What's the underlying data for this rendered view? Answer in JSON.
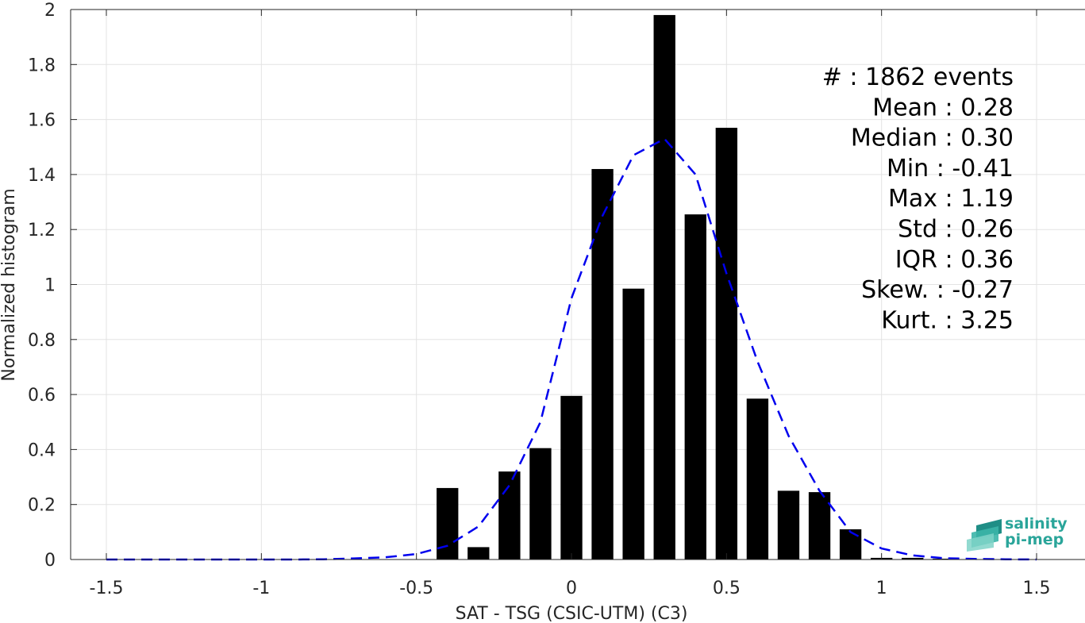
{
  "chart_data": {
    "type": "bar",
    "title": "",
    "xlabel": "SAT - TSG (CSIC-UTM) (C3)",
    "ylabel": "Normalized histogram",
    "xlim": [
      -1.5,
      1.5
    ],
    "ylim": [
      0,
      2
    ],
    "grid": true,
    "xticks": [
      -1.5,
      -1,
      -0.5,
      0,
      0.5,
      1,
      1.5
    ],
    "xtick_labels": [
      "-1.5",
      "-1",
      "-0.5",
      "0",
      "0.5",
      "1",
      "1.5"
    ],
    "yticks": [
      0,
      0.2,
      0.4,
      0.6,
      0.8,
      1,
      1.2,
      1.4,
      1.6,
      1.8,
      2
    ],
    "ytick_labels": [
      "0",
      "0.2",
      "0.4",
      "0.6",
      "0.8",
      "1",
      "1.2",
      "1.4",
      "1.6",
      "1.8",
      "2"
    ],
    "bar_width": 0.07,
    "bar_color": "#000000",
    "bars": {
      "x": [
        -0.4,
        -0.3,
        -0.2,
        -0.1,
        0.0,
        0.1,
        0.2,
        0.3,
        0.4,
        0.5,
        0.6,
        0.7,
        0.8,
        0.9,
        1.0,
        1.1,
        1.2
      ],
      "values": [
        0.26,
        0.045,
        0.32,
        0.405,
        0.595,
        1.42,
        0.985,
        1.98,
        1.255,
        1.57,
        0.585,
        0.25,
        0.245,
        0.11,
        0.006,
        0.006,
        0.003
      ]
    },
    "fit_curve": {
      "style": "dashed",
      "color": "#0000ee",
      "x": [
        -1.5,
        -1.4,
        -1.3,
        -1.2,
        -1.1,
        -1.0,
        -0.9,
        -0.8,
        -0.7,
        -0.6,
        -0.5,
        -0.4,
        -0.3,
        -0.2,
        -0.1,
        0.0,
        0.1,
        0.2,
        0.3,
        0.4,
        0.5,
        0.6,
        0.7,
        0.8,
        0.9,
        1.0,
        1.1,
        1.2,
        1.3,
        1.4,
        1.5
      ],
      "y": [
        0,
        0,
        0,
        0,
        0,
        0,
        0,
        0.001,
        0.004,
        0.008,
        0.02,
        0.05,
        0.12,
        0.27,
        0.5,
        0.95,
        1.25,
        1.47,
        1.53,
        1.4,
        1.04,
        0.72,
        0.45,
        0.25,
        0.1,
        0.04,
        0.015,
        0.005,
        0.002,
        0.001,
        0
      ]
    },
    "annotations": [
      "#  : 1862 events",
      "Mean : 0.28",
      "Median : 0.30",
      "Min : -0.41",
      "Max : 1.19",
      "Std : 0.26",
      "IQR : 0.36",
      "Skew. : -0.27",
      "Kurt. : 3.25"
    ]
  },
  "logo": {
    "line1": "salinity",
    "line2": "pi-mep",
    "color": "#2aa59a"
  }
}
